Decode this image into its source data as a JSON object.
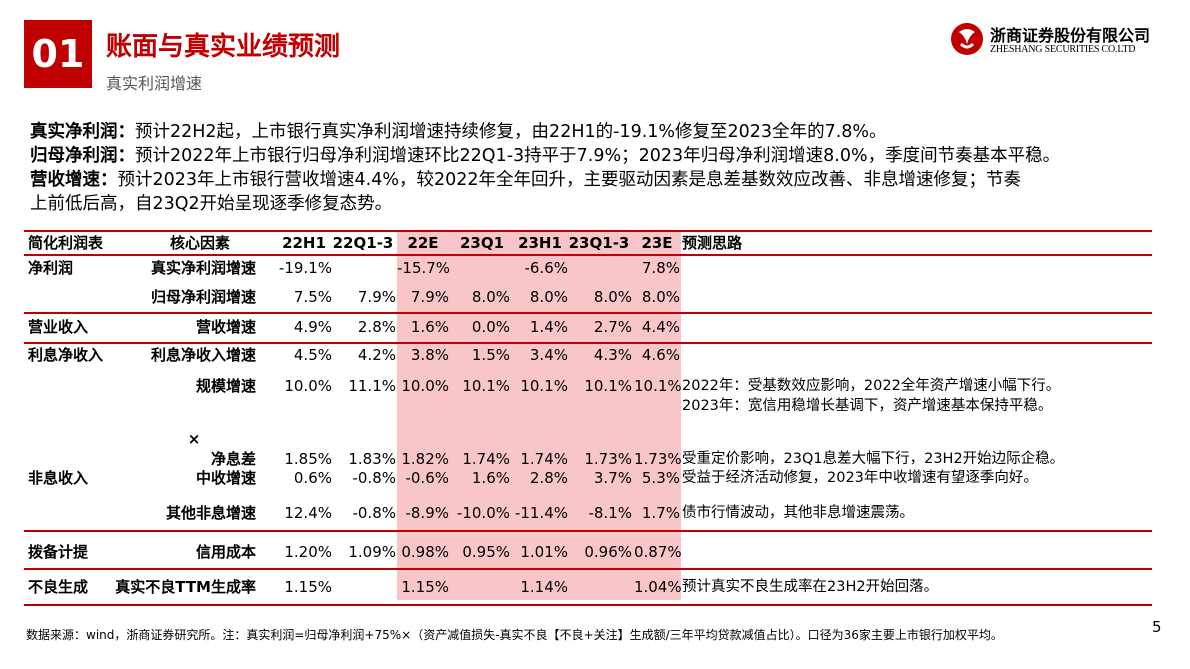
{
  "header": {
    "section_number": "01",
    "title": "账面与真实业绩预测",
    "subtitle": "真实利润增速",
    "logo_cn": "浙商证券股份有限公司",
    "logo_en": "ZHESHANG SECURITIES CO.LTD"
  },
  "summary": [
    {
      "label": "真实净利润：",
      "text": "预计22H2起，上市银行真实净利润增速持续修复，由22H1的-19.1%修复至2023全年的7.8%。"
    },
    {
      "label": "归母净利润：",
      "text": "预计2022年上市银行归母净利润增速环比22Q1-3持平于7.9%；2023年归母净利润增速8.0%，季度间节奏基本平稳。"
    },
    {
      "label": "营收增速：",
      "text": "预计2023年上市银行营收增速4.4%，较2022年全年回升，主要驱动因素是息差基数效应改善、非息增速修复；节奏"
    },
    {
      "label": "",
      "text": "上前低后高，自23Q2开始呈现逐季修复态势。"
    }
  ],
  "table": {
    "headers": [
      "简化利润表",
      "核心因素",
      "22H1",
      "22Q1-3",
      "22E",
      "23Q1",
      "23H1",
      "23Q1-3",
      "23E",
      "预测思路"
    ],
    "groups": {
      "g1": "净利润",
      "g2": "营业收入",
      "g3": "利息净收入",
      "g4": "非息收入",
      "g5": "拨备计提",
      "g6": "不良生成"
    },
    "multiply_sign": "×",
    "rows": [
      {
        "factor": "真实净利润增速",
        "v": [
          "-19.1%",
          "",
          "-15.7%",
          "",
          "-6.6%",
          "",
          "7.8%"
        ],
        "note": ""
      },
      {
        "factor": "归母净利润增速",
        "v": [
          "7.5%",
          "7.9%",
          "7.9%",
          "8.0%",
          "8.0%",
          "8.0%",
          "8.0%"
        ],
        "note": ""
      },
      {
        "factor": "营收增速",
        "v": [
          "4.9%",
          "2.8%",
          "1.6%",
          "0.0%",
          "1.4%",
          "2.7%",
          "4.4%"
        ],
        "note": ""
      },
      {
        "factor": "利息净收入增速",
        "v": [
          "4.5%",
          "4.2%",
          "3.8%",
          "1.5%",
          "3.4%",
          "4.3%",
          "4.6%"
        ],
        "note": ""
      },
      {
        "factor": "规模增速",
        "v": [
          "10.0%",
          "11.1%",
          "10.0%",
          "10.1%",
          "10.1%",
          "10.1%",
          "10.1%"
        ],
        "note": "2022年：受基数效应影响，2022全年资产增速小幅下行。",
        "note2": "2023年：宽信用稳增长基调下，资产增速基本保持平稳。"
      },
      {
        "factor": "净息差",
        "v": [
          "1.85%",
          "1.83%",
          "1.82%",
          "1.74%",
          "1.74%",
          "1.73%",
          "1.73%"
        ],
        "note": "受重定价影响，23Q1息差大幅下行，23H2开始边际企稳。"
      },
      {
        "factor": "中收增速",
        "v": [
          "0.6%",
          "-0.8%",
          "-0.6%",
          "1.6%",
          "2.8%",
          "3.7%",
          "5.3%"
        ],
        "note": "受益于经济活动修复，2023年中收增速有望逐季向好。"
      },
      {
        "factor": "其他非息增速",
        "v": [
          "12.4%",
          "-0.8%",
          "-8.9%",
          "-10.0%",
          "-11.4%",
          "-8.1%",
          "1.7%"
        ],
        "note": "债市行情波动，其他非息增速震荡。"
      },
      {
        "factor": "信用成本",
        "v": [
          "1.20%",
          "1.09%",
          "0.98%",
          "0.95%",
          "1.01%",
          "0.96%",
          "0.87%"
        ],
        "note": ""
      },
      {
        "factor": "真实不良TTM生成率",
        "v": [
          "1.15%",
          "",
          "1.15%",
          "",
          "1.14%",
          "",
          "1.04%"
        ],
        "note": "预计真实不良生成率在23H2开始回落。"
      }
    ]
  },
  "footer": {
    "source": "数据来源：wind，浙商证券研究所。注：真实利润=归母净利润+75%×（资产减值损失-真实不良【不良+关注】生成额/三年平均贷款减值占比）。口径为36家主要上市银行加权平均。",
    "page": "5"
  },
  "colors": {
    "brand_red": "#c00000",
    "highlight_pink": "#f8c6c9"
  }
}
